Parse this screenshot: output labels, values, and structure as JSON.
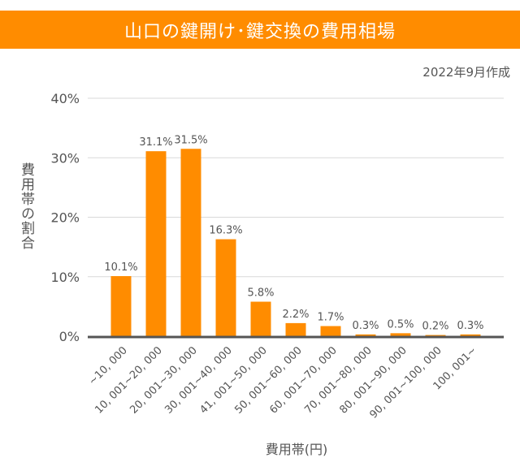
{
  "header": {
    "title": "山口の鍵開け･鍵交換の費用相場",
    "date": "2022年9月作成"
  },
  "chart_data": {
    "type": "bar",
    "title": "山口の鍵開け･鍵交換の費用相場",
    "xlabel": "費用帯(円)",
    "ylabel": "費用帯の割合",
    "ylim": [
      0,
      40
    ],
    "yticks": [
      "0%",
      "10%",
      "20%",
      "30%",
      "40%"
    ],
    "grid": true,
    "categories": [
      "~10, 000",
      "10, 001~20, 000",
      "20, 001~30, 000",
      "30, 001~40, 000",
      "41, 001~50, 000",
      "50, 001~60, 000",
      "60, 001~70, 000",
      "70, 001~80, 000",
      "80, 001~90, 000",
      "90, 001~100, 000",
      "100, 001~"
    ],
    "values": [
      10.1,
      31.1,
      31.5,
      16.3,
      5.8,
      2.2,
      1.7,
      0.3,
      0.5,
      0.2,
      0.3
    ],
    "data_labels": [
      "10.1%",
      "31.1%",
      "31.5%",
      "16.3%",
      "5.8%",
      "2.2%",
      "1.7%",
      "0.3%",
      "0.5%",
      "0.2%",
      "0.3%"
    ],
    "colors": {
      "bar": "#FF8C00",
      "axis": "#555555",
      "grid": "#D9D9D9"
    }
  }
}
